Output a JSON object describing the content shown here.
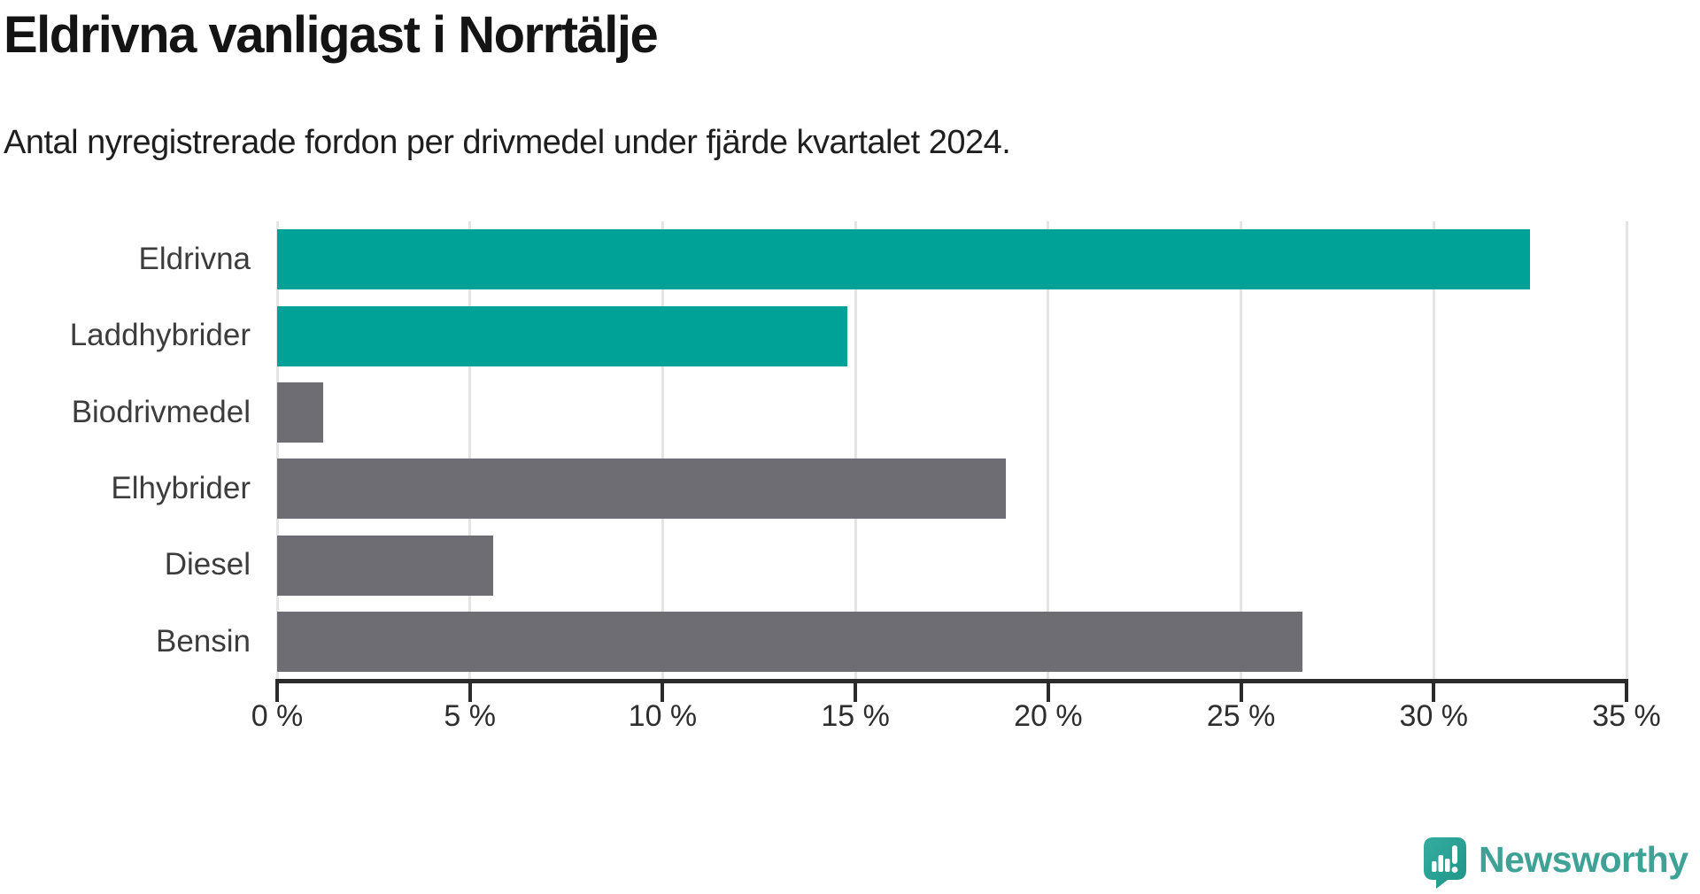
{
  "header": {
    "title": "Eldrivna vanligast i Norrtälje",
    "subtitle": "Antal nyregistrerade fordon per drivmedel under fjärde kvartalet 2024."
  },
  "chart_data": {
    "type": "bar",
    "orientation": "horizontal",
    "title": "Eldrivna vanligast i Norrtälje",
    "subtitle": "Antal nyregistrerade fordon per drivmedel under fjärde kvartalet 2024.",
    "categories": [
      "Eldrivna",
      "Laddhybrider",
      "Biodrivmedel",
      "Elhybrider",
      "Diesel",
      "Bensin"
    ],
    "values": [
      32.5,
      14.8,
      1.2,
      18.9,
      5.6,
      26.6
    ],
    "unit": "%",
    "bar_colors": [
      "#00a196",
      "#00a196",
      "#6d6d73",
      "#6d6d73",
      "#6d6d73",
      "#6d6d73"
    ],
    "highlight_color": "#00a196",
    "default_color": "#6d6d73",
    "xlabel": "",
    "ylabel": "",
    "xlim": [
      0,
      35
    ],
    "x_tick_values": [
      0,
      5,
      10,
      15,
      20,
      25,
      30,
      35
    ],
    "x_ticks": [
      "0 %",
      "5 %",
      "10 %",
      "15 %",
      "20 %",
      "25 %",
      "30 %",
      "35 %"
    ],
    "grid": true,
    "legend": "none"
  },
  "footer": {
    "brand": "Newsworthy",
    "brand_color": "#3ea296",
    "logo_color_top": "#34ad9f",
    "logo_color_bottom": "#1f9488"
  }
}
